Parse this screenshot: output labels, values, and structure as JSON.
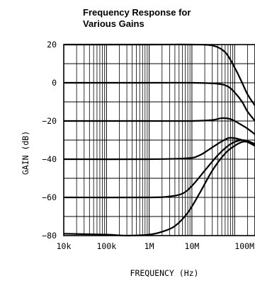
{
  "chart_data": {
    "type": "line",
    "title_lines": [
      "Frequency Response for",
      "Various Gains"
    ],
    "xlabel": "FREQUENCY (Hz)",
    "ylabel": "GAIN (dB)",
    "x_scale": "log",
    "xlim": [
      10000,
      300000000
    ],
    "ylim": [
      -80,
      20
    ],
    "xticks": [
      10000,
      100000,
      1000000,
      10000000,
      100000000
    ],
    "xtick_labels": [
      "10k",
      "100k",
      "1M",
      "10M",
      "100M"
    ],
    "yticks": [
      20,
      0,
      -20,
      -40,
      -60,
      -80
    ],
    "ytick_labels": [
      "20",
      "0",
      "−20",
      "−40",
      "−60",
      "−80"
    ],
    "grid": true,
    "series": [
      {
        "x": [
          10000,
          1000000,
          10000000,
          30000000,
          60000000,
          100000000,
          150000000,
          200000000,
          300000000
        ],
        "y": [
          20,
          20,
          20,
          19.5,
          16,
          8,
          0,
          -6,
          -12
        ]
      },
      {
        "x": [
          10000,
          1000000,
          10000000,
          40000000,
          70000000,
          100000000,
          150000000,
          200000000,
          300000000
        ],
        "y": [
          0,
          0,
          0,
          -0.5,
          -2,
          -5,
          -10,
          -15,
          -20
        ]
      },
      {
        "x": [
          10000,
          1000000,
          10000000,
          30000000,
          50000000,
          80000000,
          120000000,
          200000000,
          300000000
        ],
        "y": [
          -20,
          -20,
          -20,
          -19.5,
          -18.5,
          -19,
          -21,
          -24,
          -27
        ]
      },
      {
        "x": [
          10000,
          1000000,
          8000000,
          15000000,
          25000000,
          40000000,
          70000000,
          100000000,
          150000000,
          200000000,
          300000000
        ],
        "y": [
          -40,
          -40,
          -39.5,
          -38,
          -35,
          -32,
          -29,
          -29,
          -30,
          -31,
          -33
        ]
      },
      {
        "x": [
          10000,
          1000000,
          3000000,
          6000000,
          10000000,
          20000000,
          40000000,
          70000000,
          100000000,
          150000000,
          200000000,
          300000000
        ],
        "y": [
          -60,
          -60,
          -59.5,
          -58,
          -54,
          -46,
          -38,
          -33,
          -31,
          -30,
          -30.5,
          -32
        ]
      },
      {
        "x": [
          10000,
          100000,
          300000,
          1000000,
          2000000,
          4000000,
          8000000,
          15000000,
          30000000,
          60000000,
          100000000,
          150000000,
          200000000,
          300000000
        ],
        "y": [
          -79,
          -79.5,
          -80,
          -79.5,
          -78,
          -75,
          -68,
          -58,
          -46,
          -37,
          -33,
          -31,
          -31,
          -33
        ]
      }
    ]
  }
}
